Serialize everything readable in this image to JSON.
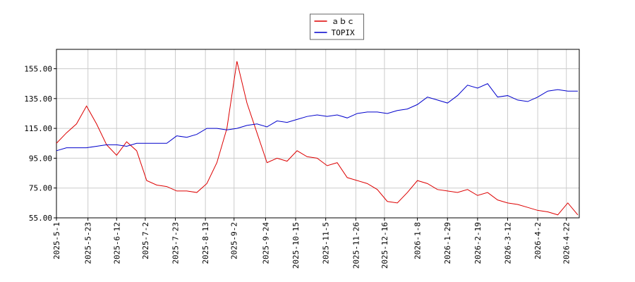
{
  "chart_data": {
    "type": "line",
    "x": [
      "2025-05-01",
      "2025-05-08",
      "2025-05-15",
      "2025-05-22",
      "2025-05-29",
      "2025-06-05",
      "2025-06-12",
      "2025-06-19",
      "2025-06-26",
      "2025-07-03",
      "2025-07-10",
      "2025-07-17",
      "2025-07-24",
      "2025-07-31",
      "2025-08-07",
      "2025-08-14",
      "2025-08-21",
      "2025-08-28",
      "2025-09-04",
      "2025-09-11",
      "2025-09-18",
      "2025-09-25",
      "2025-10-02",
      "2025-10-09",
      "2025-10-16",
      "2025-10-23",
      "2025-10-30",
      "2025-11-06",
      "2025-11-13",
      "2025-11-20",
      "2025-11-27",
      "2025-12-04",
      "2025-12-11",
      "2025-12-18",
      "2025-12-25",
      "2026-01-01",
      "2026-01-08",
      "2026-01-15",
      "2026-01-22",
      "2026-01-29",
      "2026-02-05",
      "2026-02-12",
      "2026-02-19",
      "2026-02-26",
      "2026-03-05",
      "2026-03-12",
      "2026-03-19",
      "2026-03-26",
      "2026-04-02",
      "2026-04-09",
      "2026-04-16",
      "2026-04-23",
      "2026-04-30"
    ],
    "series": [
      {
        "name": "ａｂｃ",
        "color": "#dd0000",
        "values": [
          105,
          112,
          118,
          130,
          118,
          104,
          97,
          106,
          100,
          80,
          77,
          76,
          73,
          73,
          72,
          78,
          92,
          115,
          160,
          132,
          112,
          92,
          95,
          93,
          100,
          96,
          95,
          90,
          92,
          82,
          80,
          78,
          74,
          66,
          65,
          72,
          80,
          78,
          74,
          73,
          72,
          74,
          70,
          72,
          67,
          65,
          64,
          62,
          60,
          59,
          57,
          65,
          57
        ]
      },
      {
        "name": "TOPIX",
        "color": "#0000cc",
        "values": [
          100,
          102,
          102,
          102,
          103,
          104,
          104,
          103,
          105,
          105,
          105,
          105,
          110,
          109,
          111,
          115,
          115,
          114,
          115,
          117,
          118,
          116,
          120,
          119,
          121,
          123,
          124,
          123,
          124,
          122,
          125,
          126,
          126,
          125,
          127,
          128,
          131,
          136,
          134,
          132,
          137,
          144,
          142,
          145,
          136,
          137,
          134,
          133,
          136,
          140,
          141,
          140,
          140
        ]
      }
    ],
    "xlim": [
      "2025-05-01",
      "2026-05-01"
    ],
    "xticks": [
      {
        "value": "2025-05-01",
        "label": "2025-5-1"
      },
      {
        "value": "2025-05-23",
        "label": "2025-5-23"
      },
      {
        "value": "2025-06-12",
        "label": "2025-6-12"
      },
      {
        "value": "2025-07-02",
        "label": "2025-7-2"
      },
      {
        "value": "2025-07-23",
        "label": "2025-7-23"
      },
      {
        "value": "2025-08-13",
        "label": "2025-8-13"
      },
      {
        "value": "2025-09-02",
        "label": "2025-9-2"
      },
      {
        "value": "2025-09-24",
        "label": "2025-9-24"
      },
      {
        "value": "2025-10-15",
        "label": "2025-10-15"
      },
      {
        "value": "2025-11-05",
        "label": "2025-11-5"
      },
      {
        "value": "2025-11-26",
        "label": "2025-11-26"
      },
      {
        "value": "2025-12-16",
        "label": "2025-12-16"
      },
      {
        "value": "2026-01-08",
        "label": "2026-1-8"
      },
      {
        "value": "2026-01-29",
        "label": "2026-1-29"
      },
      {
        "value": "2026-02-19",
        "label": "2026-2-19"
      },
      {
        "value": "2026-03-12",
        "label": "2026-3-12"
      },
      {
        "value": "2026-04-02",
        "label": "2026-4-2"
      },
      {
        "value": "2026-04-22",
        "label": "2026-4-22"
      }
    ],
    "ylim": [
      55,
      168
    ],
    "yticks": [
      {
        "value": 55,
        "label": "55.00"
      },
      {
        "value": 75,
        "label": "75.00"
      },
      {
        "value": 95,
        "label": "95.00"
      },
      {
        "value": 115,
        "label": "115.00"
      },
      {
        "value": 135,
        "label": "135.00"
      },
      {
        "value": 155,
        "label": "155.00"
      }
    ],
    "grid": true,
    "legend": "upper center"
  }
}
